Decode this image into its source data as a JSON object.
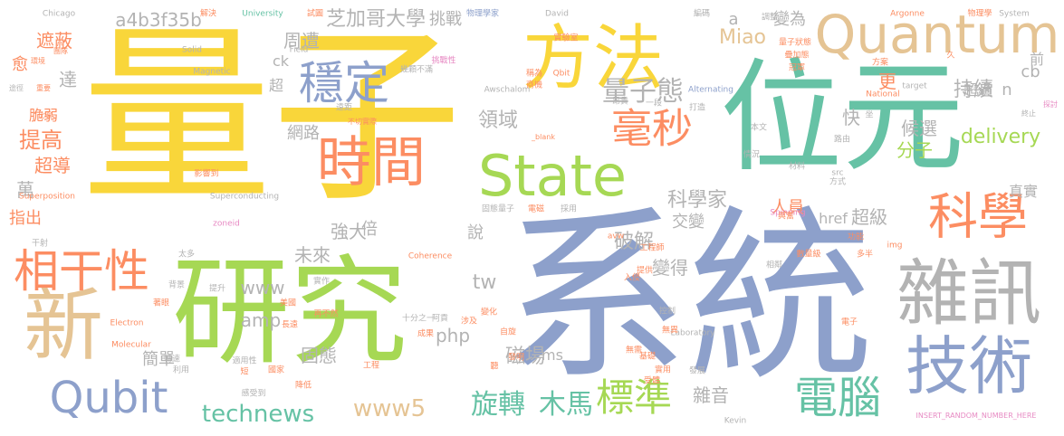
{
  "palette": {
    "yellow": "#f9d63a",
    "teal": "#66c2a5",
    "orange": "#fc8d62",
    "blue": "#8da0cb",
    "pink": "#e78ac3",
    "green": "#a6d854",
    "tan": "#e5c494",
    "gray": "#b3b3b3"
  },
  "words": [
    "量子",
    "系統",
    "研究",
    "位元",
    "方法",
    "新",
    "雜訊",
    "技術",
    "Quantum",
    "State",
    "時間",
    "科學",
    "相干性",
    "穩定",
    "毫秒",
    "電腦",
    "Qubit",
    "標準",
    "量子態",
    "旋轉",
    "木馬",
    "technews",
    "www5",
    "芝加哥大學",
    "a4b3f35b",
    "Miao",
    "delivery",
    "科學家",
    "領域",
    "持續",
    "破解",
    "強大",
    "www",
    "amp",
    "網路",
    "周遭",
    "挑戰",
    "候選",
    "分子",
    "固態",
    "簡單",
    "磁場",
    "雜音",
    "倍",
    "未來",
    "交變",
    "變得",
    "提高",
    "超導",
    "遮蔽",
    "達",
    "tw",
    "php",
    "ms",
    "指出",
    "說",
    "超級",
    "人員",
    "href",
    "變為",
    "更",
    "超過",
    "快",
    "萬",
    "cb",
    "n",
    "前",
    "ck",
    "a",
    "愈",
    "脆弱",
    "超",
    "真實",
    "Chicago",
    "解決",
    "University",
    "試圖",
    "物理學家",
    "David",
    "編碼",
    "Argonne",
    "物理學",
    "System",
    "Solid",
    "Field",
    "Magnetic",
    "挑戰性",
    "Qbit",
    "National",
    "Awschalom",
    "Alternating",
    "target",
    "不切實際",
    "Superposition",
    "Superconducting",
    "zoneid",
    "_blank",
    "Coherence",
    "Electron",
    "Molecular",
    "Laboratory",
    "Spinning",
    "Kevin",
    "INSERT_RANDOM_NUMBER_HERE",
    "影響到",
    "實驗室",
    "量子狀態",
    "疊加態",
    "冠軍",
    "遠距",
    "稱為",
    "商機",
    "幾顆不滿",
    "昂貴",
    "一段",
    "打造",
    "本文",
    "路由",
    "情況",
    "材料",
    "src",
    "方式",
    "img",
    "功能",
    "多半",
    "數量級",
    "相鄰",
    "提供",
    "興奮",
    "固態量子",
    "電磁",
    "採用",
    "avw",
    "太多",
    "無異",
    "無需",
    "發展",
    "實用",
    "基礎",
    "入侵",
    "涉及",
    "阿貢",
    "工程師",
    "途徑",
    "重要",
    "環境",
    "團隊",
    "比喻",
    "十分之一",
    "工程",
    "成果",
    "再不然",
    "美國",
    "提升",
    "背景",
    "著眼",
    "干射",
    "受體",
    "轉速",
    "利用",
    "國家",
    "感受到",
    "短",
    "適用性",
    "降低",
    "長遠",
    "實作",
    "聽",
    "自旋",
    "控制",
    "電子",
    "終止",
    "探討",
    "坐",
    "調整",
    "方案",
    "久",
    "變化",
    "發明",
    "延長",
    "趨勢",
    "消除",
    "速度"
  ]
}
